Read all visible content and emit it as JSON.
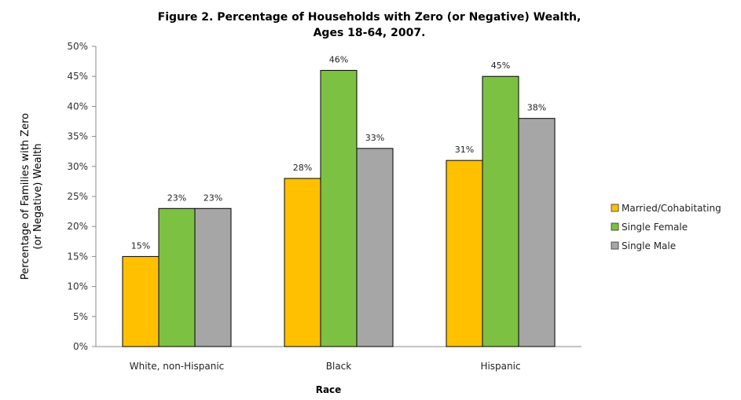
{
  "chart_data": {
    "type": "bar",
    "title": "Figure 2. Percentage of Households with Zero (or Negative) Wealth,",
    "subtitle": "Ages 18-64, 2007.",
    "xlabel": "Race",
    "ylabel_line1": "Percentage of Families with Zero",
    "ylabel_line2": "(or Negative) Wealth",
    "ylim": [
      0,
      50
    ],
    "yticks": [
      "0%",
      "5%",
      "10%",
      "15%",
      "20%",
      "25%",
      "30%",
      "35%",
      "40%",
      "45%",
      "50%"
    ],
    "categories": [
      "White, non-Hispanic",
      "Black",
      "Hispanic"
    ],
    "series": [
      {
        "name": "Married/Cohabitating",
        "color": "#FFC000",
        "values": [
          15,
          28,
          31
        ],
        "labels": [
          "15%",
          "28%",
          "31%"
        ]
      },
      {
        "name": "Single Female",
        "color": "#7DC142",
        "values": [
          23,
          46,
          45
        ],
        "labels": [
          "23%",
          "46%",
          "45%"
        ]
      },
      {
        "name": "Single Male",
        "color": "#A6A6A6",
        "values": [
          23,
          33,
          38
        ],
        "labels": [
          "23%",
          "33%",
          "38%"
        ]
      }
    ],
    "legend": "right",
    "grid": false
  }
}
